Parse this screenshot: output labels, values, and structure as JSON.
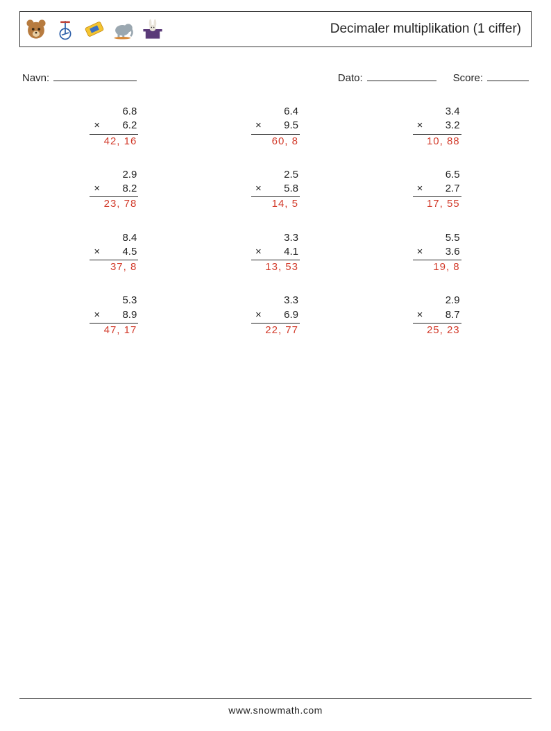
{
  "header": {
    "title": "Decimaler multiplikation (1 ciffer)"
  },
  "meta": {
    "name_label": "Navn:",
    "date_label": "Dato:",
    "score_label": "Score:"
  },
  "answer_color": "#d23a2a",
  "problems": [
    {
      "a": "6.8",
      "b": "6.2",
      "ans": "42, 16"
    },
    {
      "a": "6.4",
      "b": "9.5",
      "ans": "60, 8"
    },
    {
      "a": "3.4",
      "b": "3.2",
      "ans": "10, 88"
    },
    {
      "a": "2.9",
      "b": "8.2",
      "ans": "23, 78"
    },
    {
      "a": "2.5",
      "b": "5.8",
      "ans": "14, 5"
    },
    {
      "a": "6.5",
      "b": "2.7",
      "ans": "17, 55"
    },
    {
      "a": "8.4",
      "b": "4.5",
      "ans": "37, 8"
    },
    {
      "a": "3.3",
      "b": "4.1",
      "ans": "13, 53"
    },
    {
      "a": "5.5",
      "b": "3.6",
      "ans": "19, 8"
    },
    {
      "a": "5.3",
      "b": "8.9",
      "ans": "47, 17"
    },
    {
      "a": "3.3",
      "b": "6.9",
      "ans": "22, 77"
    },
    {
      "a": "2.9",
      "b": "8.7",
      "ans": "25, 23"
    }
  ],
  "operator": "×",
  "footer": "www.snowmath.com"
}
